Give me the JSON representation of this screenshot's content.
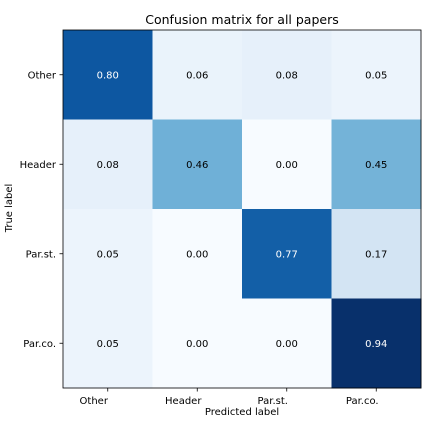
{
  "chart_data": {
    "type": "heatmap",
    "title": "Confusion matrix for all papers",
    "xlabel": "Predicted label",
    "ylabel": "True label",
    "x_labels": [
      "Other",
      "Header",
      "Par.st.",
      "Par.co."
    ],
    "y_labels": [
      "Other",
      "Header",
      "Par.st.",
      "Par.co."
    ],
    "values": [
      [
        0.8,
        0.06,
        0.08,
        0.05
      ],
      [
        0.08,
        0.46,
        0.0,
        0.45
      ],
      [
        0.05,
        0.0,
        0.77,
        0.17
      ],
      [
        0.05,
        0.0,
        0.0,
        0.94
      ]
    ],
    "value_format": "0.00",
    "colormap": "Blues",
    "vmin": 0.0,
    "vmax": 0.94,
    "text_color_dark": "#000000",
    "text_color_light": "#ffffff"
  }
}
